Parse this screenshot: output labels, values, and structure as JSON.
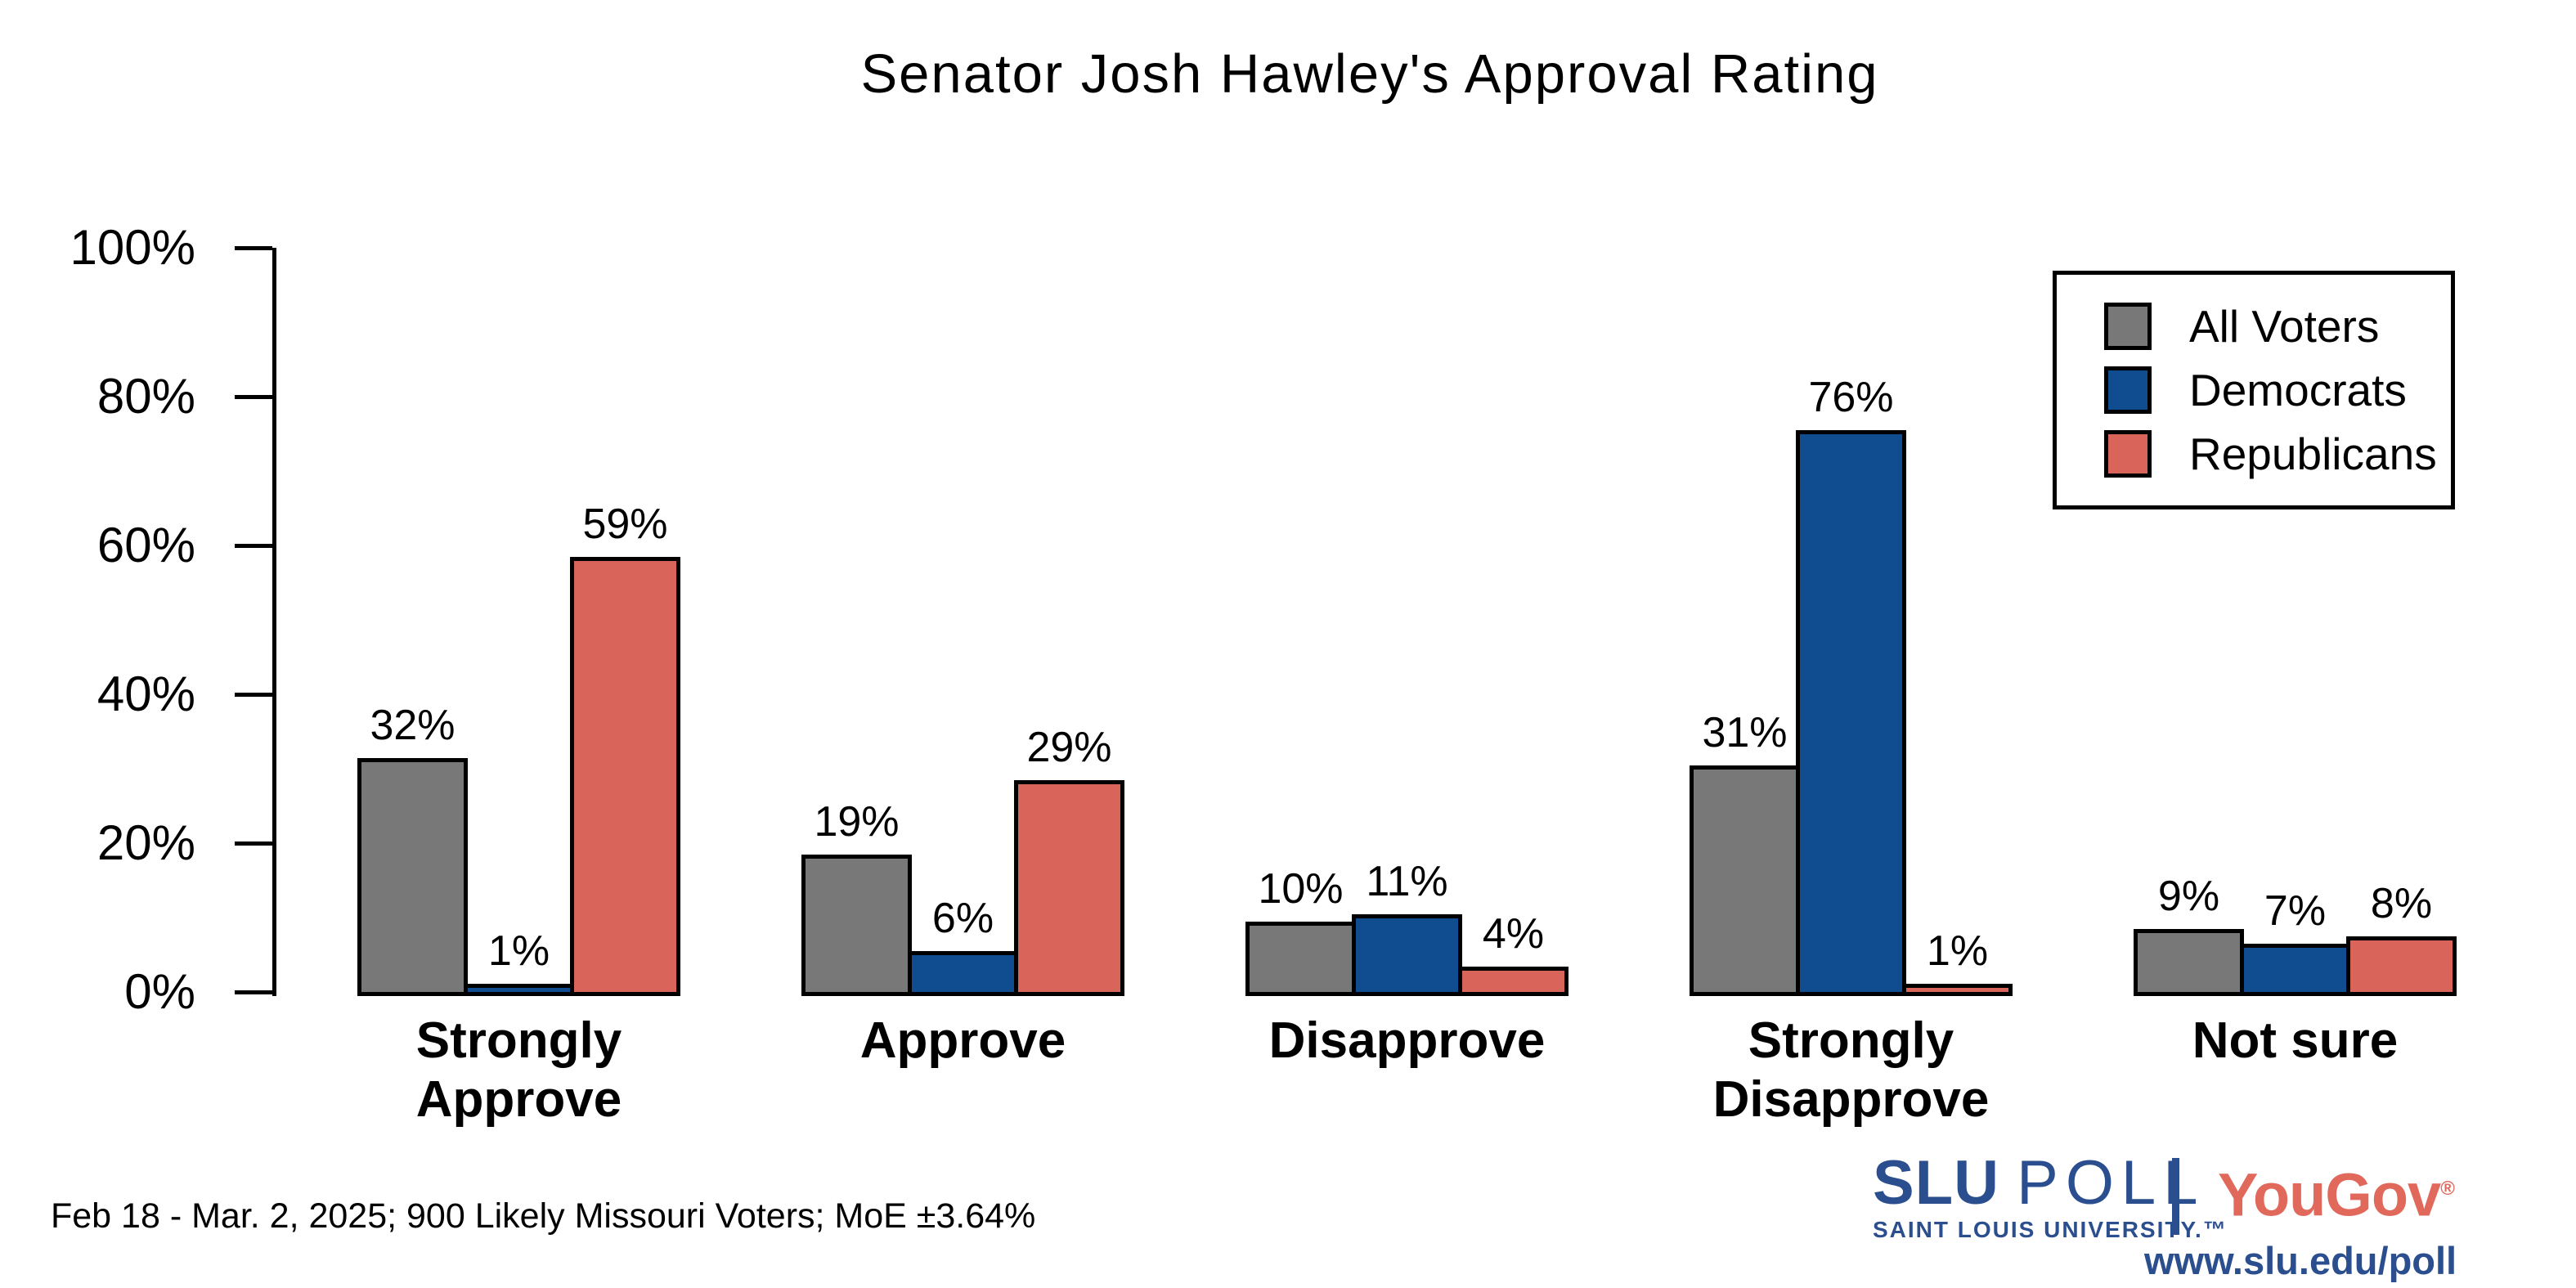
{
  "title": "Senator Josh Hawley's Approval Rating",
  "footer": "Feb 18 - Mar. 2, 2025; 900 Likely Missouri Voters; MoE ±3.64%",
  "branding": {
    "slu_name": "SLU",
    "slu_poll": "POLL",
    "slu_sub": "SAINT LOUIS UNIVERSITY.",
    "slu_tm": "™",
    "yougov": "YouGov",
    "yougov_reg": "®",
    "url": "www.slu.edu/poll",
    "slu_blue": "#2B4E8F",
    "yougov_red": "#E0695C"
  },
  "chart_data": {
    "type": "bar",
    "title": "Senator Josh Hawley's Approval Rating",
    "categories": [
      "Strongly Approve",
      "Approve",
      "Disapprove",
      "Strongly Disapprove",
      "Not sure"
    ],
    "category_lines": [
      [
        "Strongly",
        "Approve"
      ],
      [
        "Approve"
      ],
      [
        "Disapprove"
      ],
      [
        "Strongly",
        "Disapprove"
      ],
      [
        "Not sure"
      ]
    ],
    "series": [
      {
        "name": "All Voters",
        "color": "#787878",
        "values": [
          32,
          19,
          10,
          31,
          9
        ]
      },
      {
        "name": "Democrats",
        "color": "#0F4D90",
        "values": [
          1,
          6,
          11,
          76,
          7
        ]
      },
      {
        "name": "Republicans",
        "color": "#D9655A",
        "values": [
          59,
          29,
          4,
          1,
          8
        ]
      }
    ],
    "xlabel": "",
    "ylabel": "",
    "ylim": [
      0,
      100
    ],
    "yticks": [
      {
        "v": 0,
        "label": "0%"
      },
      {
        "v": 20,
        "label": "20%"
      },
      {
        "v": 40,
        "label": "40%"
      },
      {
        "v": 60,
        "label": "60%"
      },
      {
        "v": 80,
        "label": "80%"
      },
      {
        "v": 100,
        "label": "100%"
      }
    ],
    "grid": false,
    "legend_position": "upper right",
    "value_label_format": "{v}%",
    "axis_color": "#000000",
    "bar_border_color": "#000000"
  }
}
